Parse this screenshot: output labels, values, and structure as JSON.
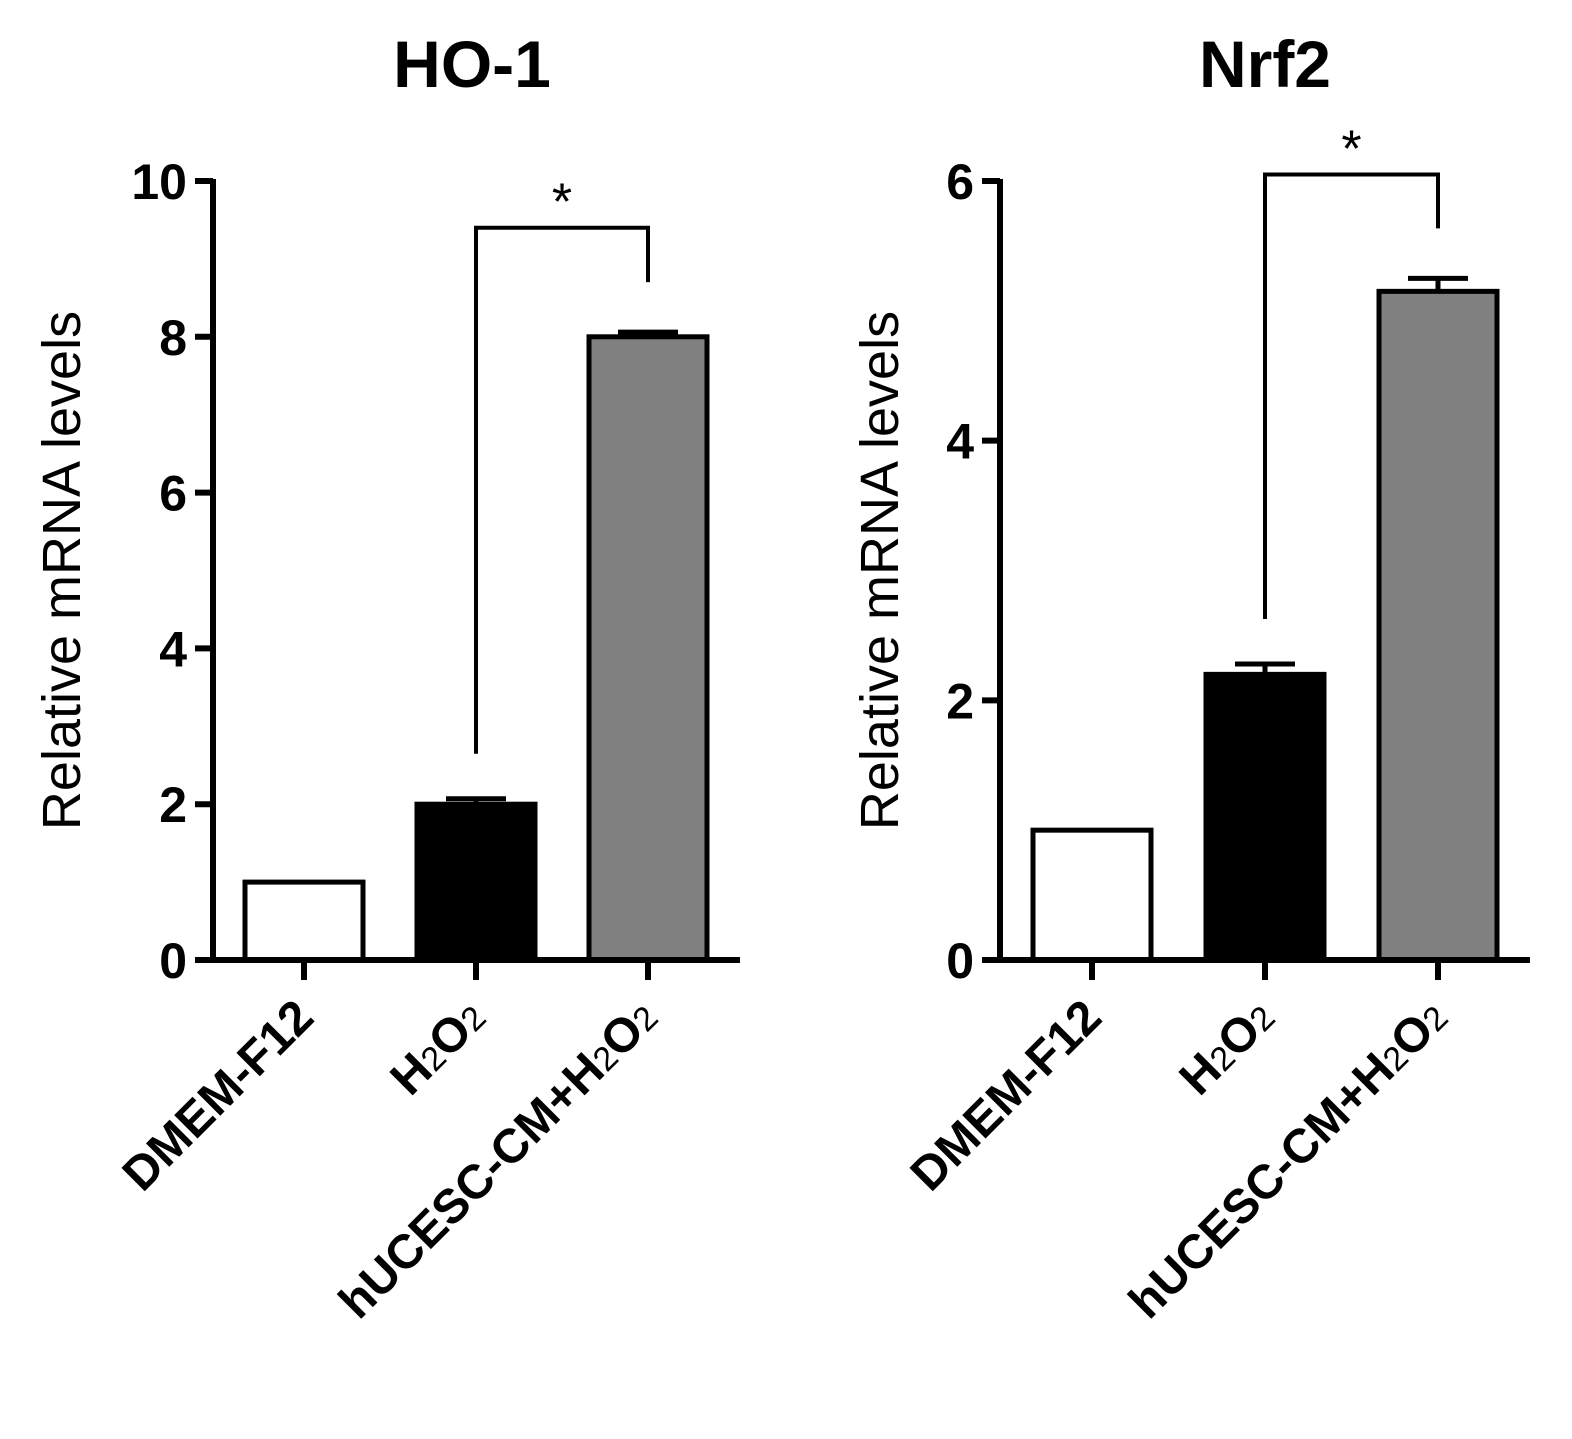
{
  "chart_data": [
    {
      "type": "bar",
      "title": "HO-1",
      "ylabel": "Relative mRNA levels",
      "xlabel": "",
      "ylim": [
        0,
        10
      ],
      "yticks": [
        0,
        2,
        4,
        6,
        8,
        10
      ],
      "categories": [
        {
          "parts": [
            {
              "t": "DMEM-F12",
              "sub": false
            }
          ]
        },
        {
          "parts": [
            {
              "t": "H",
              "sub": false
            },
            {
              "t": "2",
              "sub": true
            },
            {
              "t": "O",
              "sub": false
            },
            {
              "t": "2",
              "sub": true
            }
          ]
        },
        {
          "parts": [
            {
              "t": "hUCESC-CM+H",
              "sub": false
            },
            {
              "t": "2",
              "sub": true
            },
            {
              "t": "O",
              "sub": false
            },
            {
              "t": "2",
              "sub": true
            }
          ]
        }
      ],
      "values": [
        1.0,
        2.0,
        8.0
      ],
      "errors": [
        0,
        0.07,
        0.06
      ],
      "colors": [
        "#ffffff",
        "#000000",
        "#808080"
      ],
      "significance": {
        "from": 1,
        "to": 2,
        "label": "*",
        "y": 9.4
      }
    },
    {
      "type": "bar",
      "title": "Nrf2",
      "ylabel": "Relative mRNA levels",
      "xlabel": "",
      "ylim": [
        0,
        6
      ],
      "yticks": [
        0,
        2,
        4,
        6
      ],
      "categories": [
        {
          "parts": [
            {
              "t": "DMEM-F12",
              "sub": false
            }
          ]
        },
        {
          "parts": [
            {
              "t": "H",
              "sub": false
            },
            {
              "t": "2",
              "sub": true
            },
            {
              "t": "O",
              "sub": false
            },
            {
              "t": "2",
              "sub": true
            }
          ]
        },
        {
          "parts": [
            {
              "t": "hUCESC-CM+H",
              "sub": false
            },
            {
              "t": "2",
              "sub": true
            },
            {
              "t": "O",
              "sub": false
            },
            {
              "t": "2",
              "sub": true
            }
          ]
        }
      ],
      "values": [
        1.0,
        2.2,
        5.15
      ],
      "errors": [
        0,
        0.08,
        0.1
      ],
      "colors": [
        "#ffffff",
        "#000000",
        "#808080"
      ],
      "significance": {
        "from": 1,
        "to": 2,
        "label": "*",
        "y": 6.05
      }
    }
  ]
}
